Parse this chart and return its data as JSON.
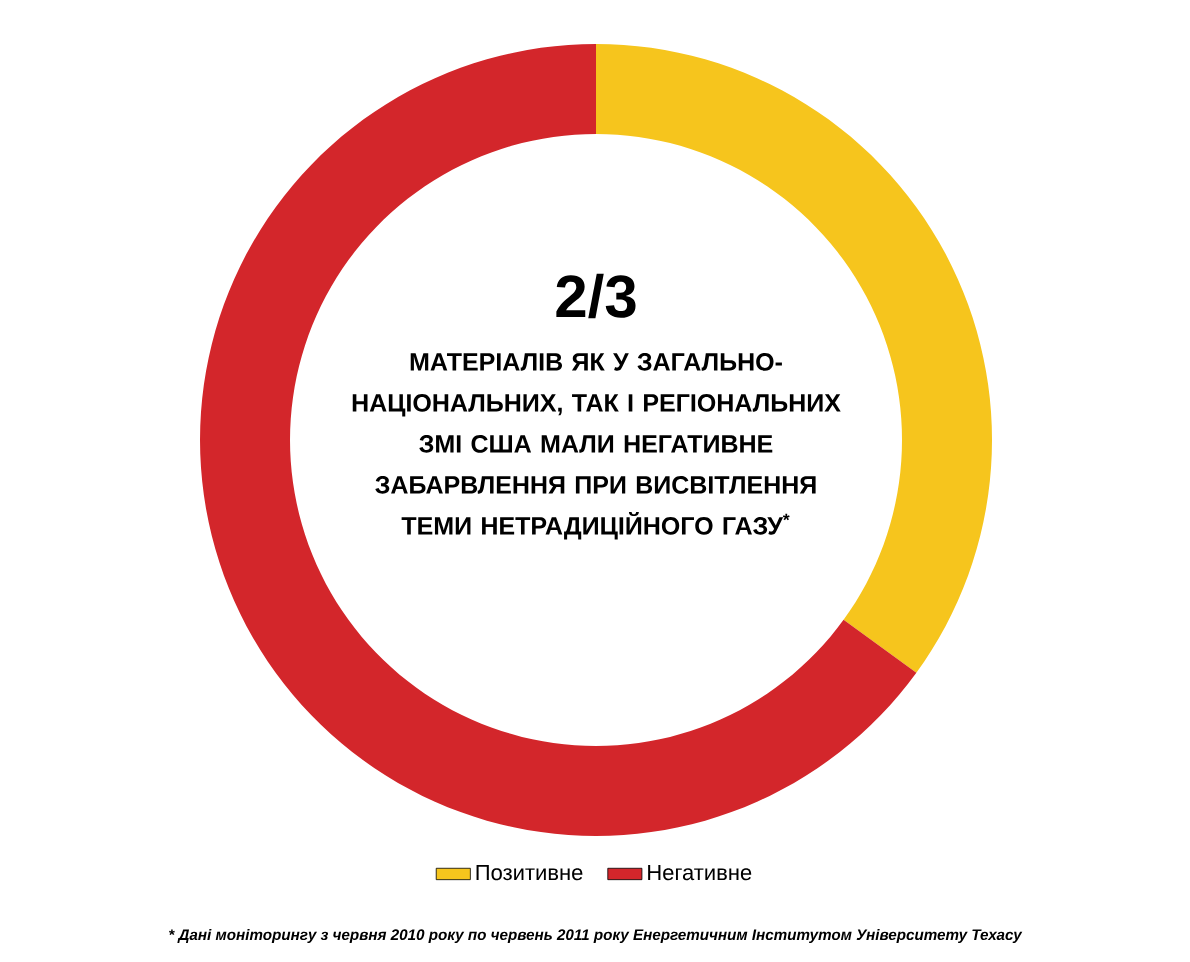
{
  "chart_data": {
    "type": "donut",
    "categories": [
      "Позитивне",
      "Негативне"
    ],
    "values": [
      35,
      65
    ],
    "colors": [
      "#f6c51d",
      "#d3262b"
    ],
    "legend": "bottom",
    "annotations": [
      "2/3",
      "МАТЕРІАЛІВ ЯК У ЗАГАЛЬНО-НАЦІОНАЛЬНИХ, ТАК І РЕГІОНАЛЬНИХ ЗМІ США МАЛИ НЕГАТИВНЕ ЗАБАРВЛЕННЯ ПРИ ВИСВІТЛЕННЯ ТЕМИ НЕТРАДИЦІЙНОГО ГАЗУ$^{*}$",
      "* Дані моніторингу з червня 2010 року по червень 2011 року Енергетичним Інститутом Університету Техасу"
    ]
  }
}
